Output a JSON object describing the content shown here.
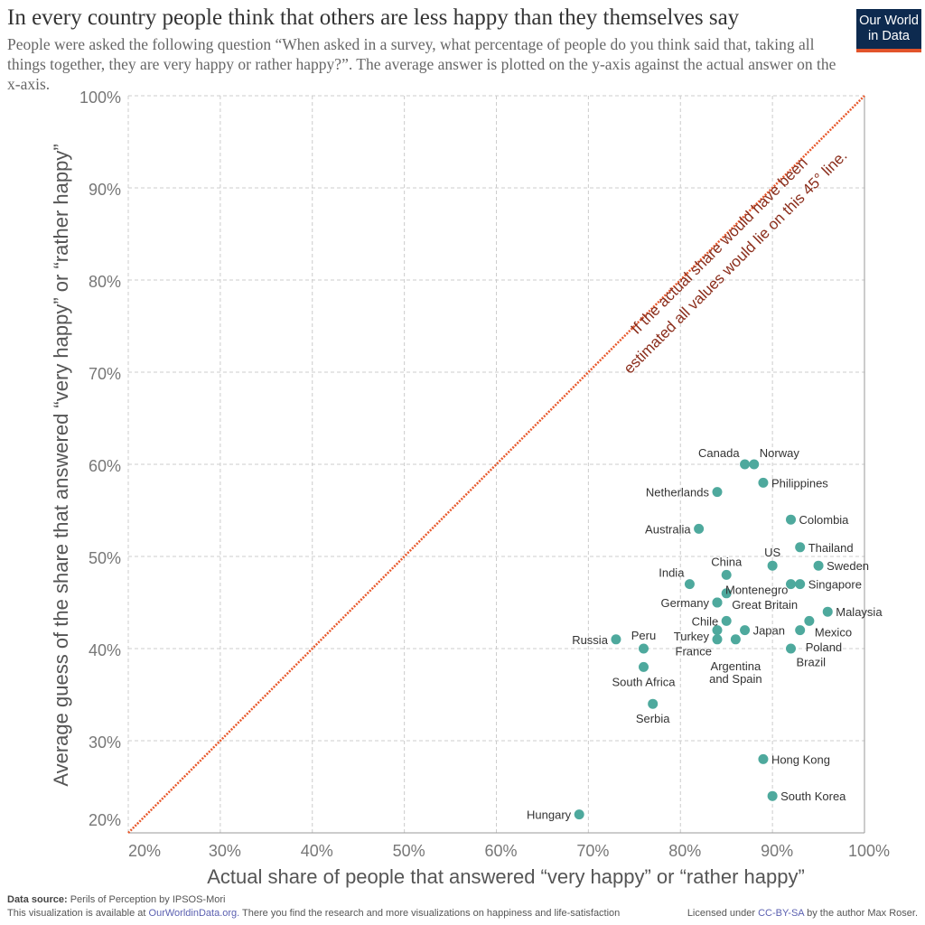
{
  "header": {
    "title": "In every country people think that others are less happy than they themselves say",
    "subtitle": "People were asked the following question “When asked in a survey, what percentage of people do you think said that, taking all things together, they are very happy or rather happy?”. The average answer is plotted on the y-axis against the actual answer on the x-axis.",
    "logo_line1": "Our World",
    "logo_line2": "in Data"
  },
  "chart_data": {
    "type": "scatter",
    "xlabel": "Actual share of people that answered “very happy” or “rather happy”",
    "ylabel": "Average guess of the share that answered “very happy” or “rather happy”",
    "xlim": [
      20,
      100
    ],
    "ylim": [
      20,
      100
    ],
    "x_ticks": [
      "20%",
      "30%",
      "40%",
      "50%",
      "60%",
      "70%",
      "80%",
      "90%",
      "100%"
    ],
    "y_ticks": [
      "20%",
      "30%",
      "40%",
      "50%",
      "60%",
      "70%",
      "80%",
      "90%",
      "100%"
    ],
    "grid": true,
    "point_color": "#4ea99d",
    "line_color": "#e8582b",
    "annotation_color": "#8b2e1c",
    "reference_line": {
      "from": [
        20,
        20
      ],
      "to": [
        100,
        100
      ]
    },
    "annotation_line1": "If the actual share would have been",
    "annotation_line2": "estimated all values would lie on this 45° line.",
    "points": [
      {
        "label": "Canada",
        "x": 87,
        "y": 60,
        "pos": "tl"
      },
      {
        "label": "Norway",
        "x": 88,
        "y": 60,
        "pos": "tr"
      },
      {
        "label": "Philippines",
        "x": 89,
        "y": 58,
        "pos": "r"
      },
      {
        "label": "Netherlands",
        "x": 84,
        "y": 57,
        "pos": "l"
      },
      {
        "label": "Australia",
        "x": 82,
        "y": 53,
        "pos": "l"
      },
      {
        "label": "Colombia",
        "x": 92,
        "y": 54,
        "pos": "r"
      },
      {
        "label": "Thailand",
        "x": 93,
        "y": 51,
        "pos": "r"
      },
      {
        "label": "US",
        "x": 90,
        "y": 49,
        "pos": "t"
      },
      {
        "label": "Sweden",
        "x": 95,
        "y": 49,
        "pos": "r"
      },
      {
        "label": "China",
        "x": 85,
        "y": 48,
        "pos": "t"
      },
      {
        "label": "India",
        "x": 81,
        "y": 47,
        "pos": "tl"
      },
      {
        "label": "",
        "x": 92,
        "y": 47,
        "pos": "r"
      },
      {
        "label": "Singapore",
        "x": 93,
        "y": 47,
        "pos": "r"
      },
      {
        "label": "Great Britain",
        "x": 85,
        "y": 46,
        "pos": "br"
      },
      {
        "label": "Germany",
        "x": 84,
        "y": 45,
        "pos": "l"
      },
      {
        "label": "Montenegro",
        "x": 84,
        "y": 45,
        "pos": "r"
      },
      {
        "label": "Malaysia",
        "x": 96,
        "y": 44,
        "pos": "r"
      },
      {
        "label": "Mexico",
        "x": 94,
        "y": 43,
        "pos": "br"
      },
      {
        "label": "Chile",
        "x": 85,
        "y": 43,
        "pos": "l"
      },
      {
        "label": "Turkey",
        "x": 84,
        "y": 42,
        "pos": "l"
      },
      {
        "label": "Japan",
        "x": 87,
        "y": 42,
        "pos": "r"
      },
      {
        "label": "Poland",
        "x": 93,
        "y": 42,
        "pos": "br"
      },
      {
        "label": "France",
        "x": 84,
        "y": 41,
        "pos": "bl"
      },
      {
        "label": "Argentina|and Spain",
        "x": 86,
        "y": 41,
        "pos": "b"
      },
      {
        "label": "Russia",
        "x": 73,
        "y": 41,
        "pos": "l"
      },
      {
        "label": "Peru",
        "x": 76,
        "y": 40,
        "pos": "t"
      },
      {
        "label": "Brazil",
        "x": 92,
        "y": 40,
        "pos": "br"
      },
      {
        "label": "South Africa",
        "x": 76,
        "y": 38,
        "pos": "b"
      },
      {
        "label": "Serbia",
        "x": 77,
        "y": 34,
        "pos": "b"
      },
      {
        "label": "Hong Kong",
        "x": 89,
        "y": 28,
        "pos": "r"
      },
      {
        "label": "South Korea",
        "x": 90,
        "y": 24,
        "pos": "r"
      },
      {
        "label": "Hungary",
        "x": 69,
        "y": 22,
        "pos": "l"
      }
    ]
  },
  "footer": {
    "source_label": "Data source:",
    "source": "Perils of Perception by IPSOS-Mori",
    "avail_prefix": "This visualization is available at ",
    "avail_link": "OurWorldinData.org.",
    "avail_suffix": " There you find the research and more visualizations on happiness and life-satisfaction",
    "license_prefix": "Licensed under ",
    "license_link": "CC-BY-SA",
    "license_suffix": " by the author Max Roser."
  }
}
